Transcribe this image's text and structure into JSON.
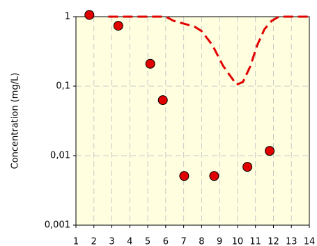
{
  "chart_data": {
    "type": "scatter",
    "y_label": "Concentration (mg/L)",
    "xlim": [
      1,
      14
    ],
    "ylim": [
      0.001,
      1
    ],
    "log_y": true,
    "grid": true,
    "xticks": [
      1,
      2,
      3,
      4,
      5,
      6,
      7,
      8,
      9,
      10,
      11,
      12,
      13,
      14
    ],
    "yticks": [
      {
        "value": 0.001,
        "label": "0,001"
      },
      {
        "value": 0.01,
        "label": "0,01"
      },
      {
        "value": 0.1,
        "label": "0,1"
      },
      1
    ],
    "series": [
      {
        "type": "scatter",
        "color": "#e00000",
        "x": [
          1.75,
          3.36,
          5.14,
          5.84,
          7.03,
          8.7,
          10.55,
          11.79
        ],
        "values": [
          1.06,
          0.74,
          0.21,
          0.063,
          0.0051,
          0.0051,
          0.0069,
          0.0117
        ]
      },
      {
        "type": "line",
        "color": "#e00000",
        "dashed": true,
        "x": [
          2.8,
          6,
          6.45,
          7.6,
          8,
          8.6,
          9.2,
          9.6,
          9.95,
          10.3,
          10.7,
          11.1,
          11.5,
          11.9,
          12.3,
          14
        ],
        "values": [
          1,
          1,
          0.87,
          0.72,
          0.62,
          0.39,
          0.195,
          0.14,
          0.105,
          0.115,
          0.19,
          0.39,
          0.66,
          0.87,
          1,
          1
        ]
      }
    ]
  }
}
